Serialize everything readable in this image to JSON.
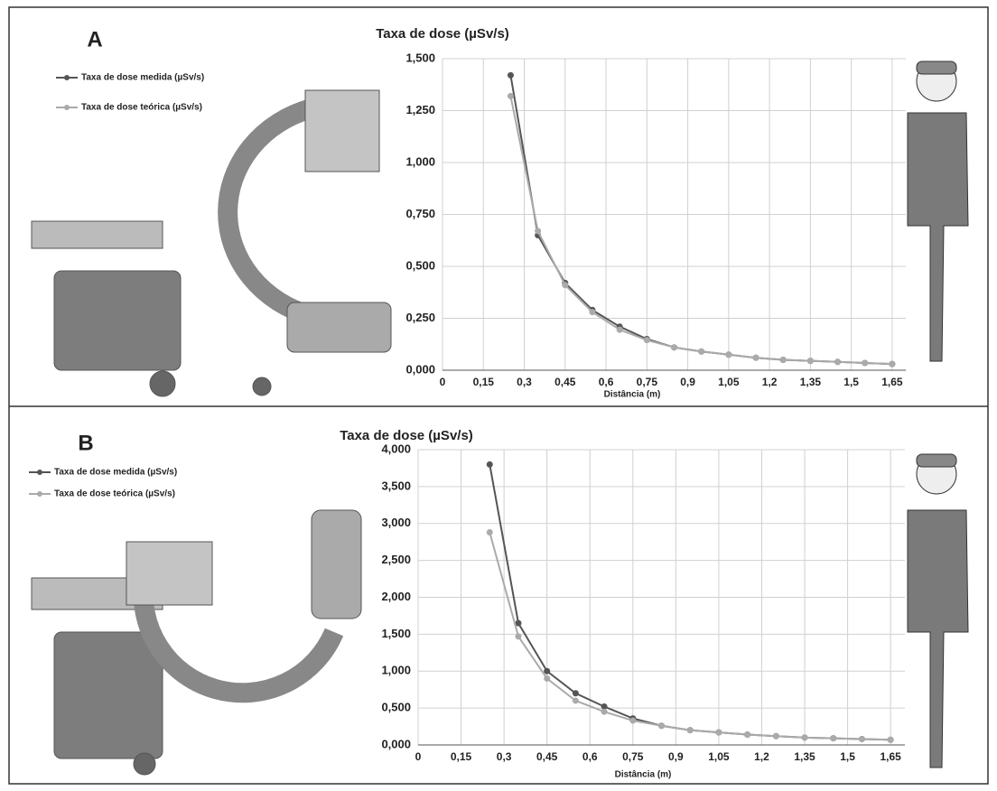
{
  "chart_data": [
    {
      "type": "line",
      "panel": "A",
      "title": "Taxa de dose (µSv/s)",
      "x_label": "Distância (m)",
      "x": [
        0.25,
        0.35,
        0.45,
        0.55,
        0.65,
        0.75,
        0.85,
        0.95,
        1.05,
        1.15,
        1.25,
        1.35,
        1.45,
        1.55,
        1.65
      ],
      "series": [
        {
          "name": "Taxa de dose medida (µSv/s)",
          "color": "#555555",
          "values": [
            1.42,
            0.65,
            0.42,
            0.29,
            0.21,
            0.15,
            0.11,
            0.09,
            0.075,
            0.06,
            0.05,
            0.045,
            0.04,
            0.035,
            0.03
          ]
        },
        {
          "name": "Taxa de dose teórica (µSv/s)",
          "color": "#aaaaaa",
          "values": [
            1.32,
            0.67,
            0.41,
            0.28,
            0.195,
            0.145,
            0.11,
            0.09,
            0.075,
            0.06,
            0.05,
            0.045,
            0.04,
            0.035,
            0.03
          ]
        }
      ],
      "xlim": [
        0,
        1.7
      ],
      "ylim": [
        0,
        1.5
      ],
      "xticks": [
        0,
        {
          "value": 0.15,
          "label": "0,15"
        },
        {
          "value": 0.3,
          "label": "0,3"
        },
        {
          "value": 0.45,
          "label": "0,45"
        },
        {
          "value": 0.6,
          "label": "0,6"
        },
        {
          "value": 0.75,
          "label": "0,75"
        },
        {
          "value": 0.9,
          "label": "0,9"
        },
        {
          "value": 1.05,
          "label": "1,05"
        },
        {
          "value": 1.2,
          "label": "1,2"
        },
        {
          "value": 1.35,
          "label": "1,35"
        },
        {
          "value": 1.5,
          "label": "1,5"
        },
        {
          "value": 1.65,
          "label": "1,65"
        }
      ],
      "yticks": [
        {
          "value": 0,
          "label": "0,000"
        },
        {
          "value": 0.25,
          "label": "0,250"
        },
        {
          "value": 0.5,
          "label": "0,500"
        },
        {
          "value": 0.75,
          "label": "0,750"
        },
        {
          "value": 1,
          "label": "1,000"
        },
        {
          "value": 1.25,
          "label": "1,250"
        },
        {
          "value": 1.5,
          "label": "1,500"
        }
      ],
      "grid": true
    },
    {
      "type": "line",
      "panel": "B",
      "title": "Taxa de dose (µSv/s)",
      "x_label": "Distância (m)",
      "x": [
        0.25,
        0.35,
        0.45,
        0.55,
        0.65,
        0.75,
        0.85,
        0.95,
        1.05,
        1.15,
        1.25,
        1.35,
        1.45,
        1.55,
        1.65
      ],
      "series": [
        {
          "name": "Taxa de dose medida (µSv/s)",
          "color": "#555555",
          "values": [
            3.8,
            1.65,
            1.0,
            0.7,
            0.52,
            0.36,
            0.26,
            0.2,
            0.17,
            0.14,
            0.12,
            0.1,
            0.09,
            0.08,
            0.07
          ]
        },
        {
          "name": "Taxa de dose teórica (µSv/s)",
          "color": "#aaaaaa",
          "values": [
            2.88,
            1.47,
            0.9,
            0.6,
            0.45,
            0.33,
            0.26,
            0.2,
            0.17,
            0.14,
            0.12,
            0.1,
            0.09,
            0.08,
            0.07
          ]
        }
      ],
      "xlim": [
        0,
        1.7
      ],
      "ylim": [
        0,
        4
      ],
      "xticks": [
        0,
        {
          "value": 0.15,
          "label": "0,15"
        },
        {
          "value": 0.3,
          "label": "0,3"
        },
        {
          "value": 0.45,
          "label": "0,45"
        },
        {
          "value": 0.6,
          "label": "0,6"
        },
        {
          "value": 0.75,
          "label": "0,75"
        },
        {
          "value": 0.9,
          "label": "0,9"
        },
        {
          "value": 1.05,
          "label": "1,05"
        },
        {
          "value": 1.2,
          "label": "1,2"
        },
        {
          "value": 1.35,
          "label": "1,35"
        },
        {
          "value": 1.5,
          "label": "1,5"
        },
        {
          "value": 1.65,
          "label": "1,65"
        }
      ],
      "yticks": [
        {
          "value": 0,
          "label": "0,000"
        },
        {
          "value": 0.5,
          "label": "0,500"
        },
        {
          "value": 1,
          "label": "1,000"
        },
        {
          "value": 1.5,
          "label": "1,500"
        },
        {
          "value": 2,
          "label": "2,000"
        },
        {
          "value": 2.5,
          "label": "2,500"
        },
        {
          "value": 3,
          "label": "3,000"
        },
        {
          "value": 3.5,
          "label": "3,500"
        },
        {
          "value": 4,
          "label": "4,000"
        }
      ],
      "grid": true
    }
  ]
}
